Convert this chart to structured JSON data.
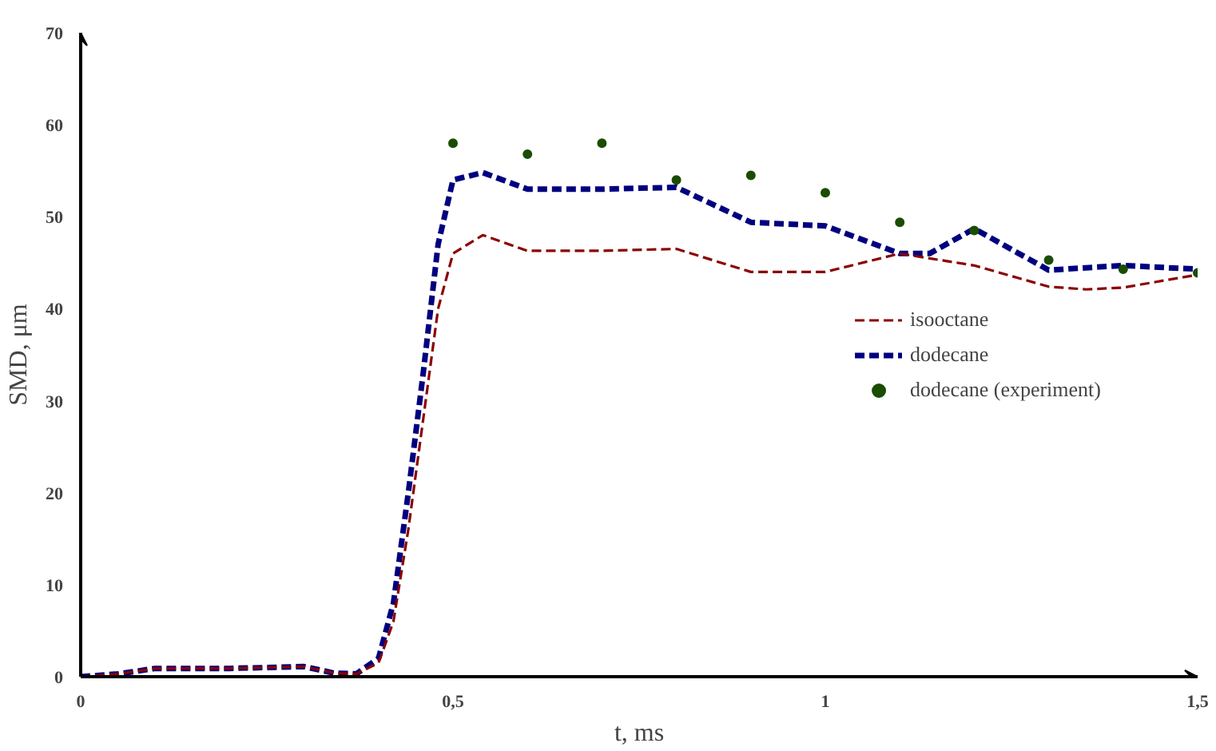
{
  "chart_data": {
    "type": "line",
    "xlabel": "t, ms",
    "ylabel": "SMD, μm",
    "xlim": [
      0,
      1.5
    ],
    "ylim": [
      0,
      70
    ],
    "xticks": [
      0,
      {
        "value": 0.5,
        "label": "0,5"
      },
      1,
      {
        "value": 1.5,
        "label": "1,5"
      }
    ],
    "yticks": [
      0,
      10,
      20,
      30,
      40,
      50,
      60,
      70
    ],
    "grid": false,
    "legend": "right",
    "series": [
      {
        "name": "isooctane",
        "color": "#8b0000",
        "line_style": "dashed",
        "x": [
          0,
          0.05,
          0.1,
          0.2,
          0.3,
          0.34,
          0.37,
          0.4,
          0.42,
          0.44,
          0.46,
          0.48,
          0.5,
          0.54,
          0.6,
          0.7,
          0.8,
          0.9,
          1.0,
          1.1,
          1.2,
          1.3,
          1.35,
          1.4,
          1.5
        ],
        "values": [
          0,
          0.3,
          0.9,
          0.9,
          1.1,
          0.4,
          0.3,
          1.5,
          6,
          16,
          28,
          40,
          46,
          48,
          46.3,
          46.3,
          46.5,
          44,
          44,
          46,
          44.7,
          42.4,
          42.1,
          42.3,
          43.7
        ]
      },
      {
        "name": "dodecane",
        "color": "#00007f",
        "line_style": "dashed",
        "x": [
          0,
          0.05,
          0.1,
          0.2,
          0.3,
          0.34,
          0.37,
          0.4,
          0.42,
          0.44,
          0.46,
          0.48,
          0.5,
          0.54,
          0.6,
          0.7,
          0.8,
          0.9,
          1.0,
          1.1,
          1.14,
          1.2,
          1.3,
          1.4,
          1.5
        ],
        "values": [
          0,
          0.3,
          0.9,
          0.9,
          1.1,
          0.4,
          0.3,
          2,
          8,
          20,
          33,
          47,
          54,
          54.8,
          53,
          53,
          53.2,
          49.4,
          49,
          46,
          46,
          48.7,
          44.2,
          44.7,
          44.3
        ]
      },
      {
        "name": "dodecane (experiment)",
        "type": "scatter",
        "marker": "circle",
        "color": "#1a4d00",
        "x": [
          0.5,
          0.6,
          0.7,
          0.8,
          0.9,
          1.0,
          1.1,
          1.2,
          1.3,
          1.4,
          1.5
        ],
        "values": [
          58,
          56.8,
          58,
          54,
          54.5,
          52.6,
          49.4,
          48.5,
          45.3,
          44.3,
          43.9
        ]
      }
    ]
  }
}
